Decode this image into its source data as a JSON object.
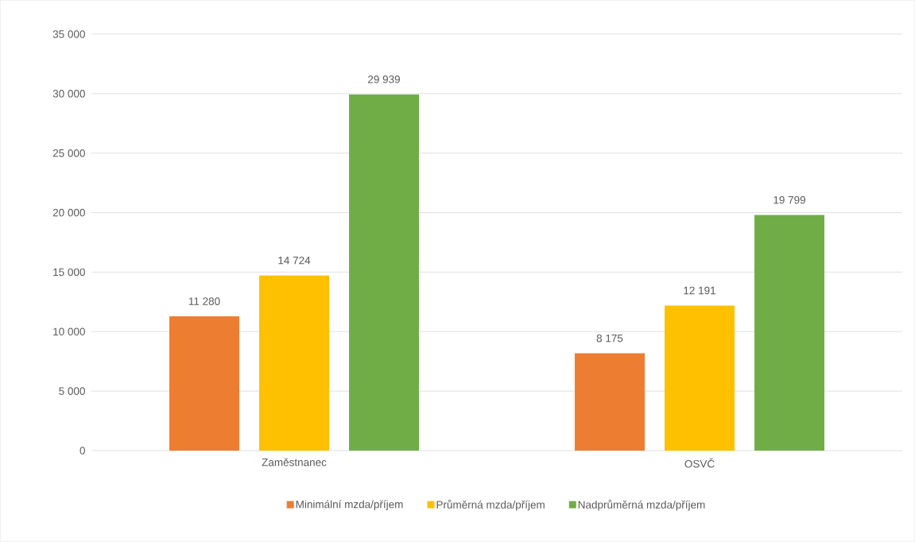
{
  "chart_data": {
    "type": "bar",
    "categories": [
      "Zaměstnanec",
      "OSVČ"
    ],
    "series": [
      {
        "name": "Minimální mzda/příjem",
        "color": "#ed7d31",
        "values": [
          11280,
          8175
        ],
        "value_labels": [
          "11 280",
          "8 175"
        ]
      },
      {
        "name": "Průměrná mzda/příjem",
        "color": "#ffc000",
        "values": [
          14724,
          12191
        ],
        "value_labels": [
          "14 724",
          "12 191"
        ]
      },
      {
        "name": "Nadprůměrná mzda/příjem",
        "color": "#70ad47",
        "values": [
          29939,
          19799
        ],
        "value_labels": [
          "29 939",
          "19 799"
        ]
      }
    ],
    "ylim": [
      0,
      35000
    ],
    "yticks": [
      {
        "value": 0,
        "label": "0"
      },
      {
        "value": 5000,
        "label": "5 000"
      },
      {
        "value": 10000,
        "label": "10 000"
      },
      {
        "value": 15000,
        "label": "15 000"
      },
      {
        "value": 20000,
        "label": "20 000"
      },
      {
        "value": 25000,
        "label": "25 000"
      },
      {
        "value": 30000,
        "label": "30 000"
      },
      {
        "value": 35000,
        "label": "35 000"
      }
    ],
    "grid": "y",
    "legend": "bottom"
  }
}
